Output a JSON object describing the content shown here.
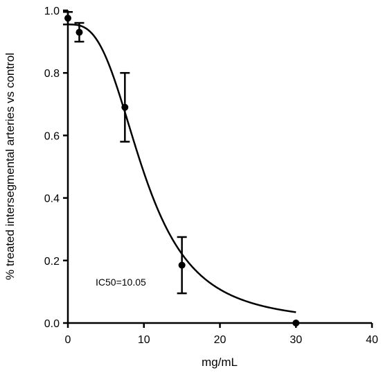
{
  "chart_data": {
    "type": "scatter",
    "xlabel": "mg/mL",
    "ylabel": "% treated intersegmental arteries vs  control",
    "xlim": [
      0,
      40
    ],
    "ylim": [
      0,
      1.0
    ],
    "x_ticks": [
      0,
      10,
      20,
      30,
      40
    ],
    "x_tick_labels": [
      "0",
      "10",
      "20",
      "30",
      "40"
    ],
    "y_ticks": [
      0,
      0.2,
      0.4,
      0.6,
      0.8,
      1.0
    ],
    "y_tick_labels": [
      "0.0",
      "0.2",
      "0.4",
      "0.6",
      "0.8",
      "1.0"
    ],
    "grid": false,
    "points": [
      {
        "x": 0,
        "y": 0.975,
        "err": 0.02
      },
      {
        "x": 1.5,
        "y": 0.93,
        "err": 0.03
      },
      {
        "x": 7.5,
        "y": 0.69,
        "err": 0.11
      },
      {
        "x": 15,
        "y": 0.185,
        "err": 0.09
      },
      {
        "x": 30,
        "y": 0.0,
        "err": 0.0
      }
    ],
    "fit": {
      "model": "sigmoidal dose-response",
      "top": 0.955,
      "bottom": 0.0,
      "ic50": 10.05,
      "hill_slope": 3.0
    },
    "annotations": [
      "IC50=10.05"
    ]
  }
}
